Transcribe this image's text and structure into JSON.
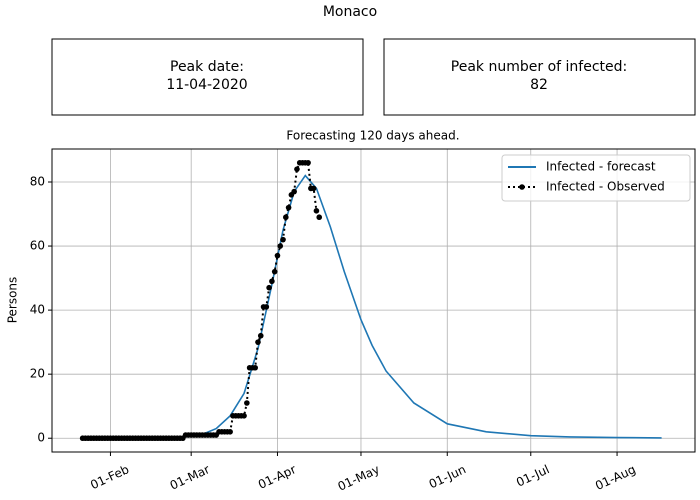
{
  "title": "Monaco",
  "boxes": [
    {
      "label": "Peak date:",
      "value": "11-04-2020"
    },
    {
      "label": "Peak number of infected:",
      "value": 82
    }
  ],
  "chart_data": {
    "type": "line",
    "title": "Forecasting 120 days ahead.",
    "y_label": "Persons",
    "xlim": [
      "2020-01-11",
      "2020-08-29"
    ],
    "xticks": [
      {
        "value": "2020-02-01",
        "label": "01-Feb"
      },
      {
        "value": "2020-03-01",
        "label": "01-Mar"
      },
      {
        "value": "2020-04-01",
        "label": "01-Apr"
      },
      {
        "value": "2020-05-01",
        "label": "01-May"
      },
      {
        "value": "2020-06-01",
        "label": "01-Jun"
      },
      {
        "value": "2020-07-01",
        "label": "01-Jul"
      },
      {
        "value": "2020-08-01",
        "label": "01-Aug"
      }
    ],
    "ylim": [
      -4.3,
      90.3
    ],
    "yticks": [
      0,
      20,
      40,
      60,
      80
    ],
    "grid": true,
    "legend": "upper right",
    "series": [
      {
        "name": "Infected - forecast",
        "color": "#1f77b4",
        "style": "solid",
        "x": [
          "2020-01-22",
          "2020-02-05",
          "2020-02-15",
          "2020-02-22",
          "2020-03-01",
          "2020-03-05",
          "2020-03-10",
          "2020-03-15",
          "2020-03-20",
          "2020-03-25",
          "2020-03-30",
          "2020-04-03",
          "2020-04-07",
          "2020-04-11",
          "2020-04-15",
          "2020-04-20",
          "2020-04-25",
          "2020-05-01",
          "2020-05-05",
          "2020-05-10",
          "2020-05-20",
          "2020-06-01",
          "2020-06-15",
          "2020-07-01",
          "2020-07-15",
          "2020-08-01",
          "2020-08-17"
        ],
        "values": [
          0,
          0,
          0.1,
          0.2,
          0.5,
          1.2,
          3,
          7,
          14,
          28,
          48,
          65,
          77,
          82,
          78,
          66,
          52,
          37,
          29,
          21,
          11,
          4.5,
          2,
          0.8,
          0.4,
          0.2,
          0.1
        ]
      },
      {
        "name": "Infected - Observed",
        "color": "#000000",
        "style": "dotted",
        "markers": true,
        "x": [
          "2020-01-22",
          "2020-01-23",
          "2020-01-24",
          "2020-01-25",
          "2020-01-26",
          "2020-01-27",
          "2020-01-28",
          "2020-01-29",
          "2020-01-30",
          "2020-01-31",
          "2020-02-01",
          "2020-02-02",
          "2020-02-03",
          "2020-02-04",
          "2020-02-05",
          "2020-02-06",
          "2020-02-07",
          "2020-02-08",
          "2020-02-09",
          "2020-02-10",
          "2020-02-11",
          "2020-02-12",
          "2020-02-13",
          "2020-02-14",
          "2020-02-15",
          "2020-02-16",
          "2020-02-17",
          "2020-02-18",
          "2020-02-19",
          "2020-02-20",
          "2020-02-21",
          "2020-02-22",
          "2020-02-23",
          "2020-02-24",
          "2020-02-25",
          "2020-02-26",
          "2020-02-27",
          "2020-02-28",
          "2020-02-29",
          "2020-03-01",
          "2020-03-02",
          "2020-03-03",
          "2020-03-04",
          "2020-03-05",
          "2020-03-06",
          "2020-03-07",
          "2020-03-08",
          "2020-03-09",
          "2020-03-10",
          "2020-03-11",
          "2020-03-12",
          "2020-03-13",
          "2020-03-14",
          "2020-03-15",
          "2020-03-16",
          "2020-03-17",
          "2020-03-18",
          "2020-03-19",
          "2020-03-20",
          "2020-03-21",
          "2020-03-22",
          "2020-03-23",
          "2020-03-24",
          "2020-03-25",
          "2020-03-26",
          "2020-03-27",
          "2020-03-28",
          "2020-03-29",
          "2020-03-30",
          "2020-03-31",
          "2020-04-01",
          "2020-04-02",
          "2020-04-03",
          "2020-04-04",
          "2020-04-05",
          "2020-04-06",
          "2020-04-07",
          "2020-04-08",
          "2020-04-09",
          "2020-04-10",
          "2020-04-11",
          "2020-04-12",
          "2020-04-13",
          "2020-04-14",
          "2020-04-15",
          "2020-04-16"
        ],
        "values": [
          0,
          0,
          0,
          0,
          0,
          0,
          0,
          0,
          0,
          0,
          0,
          0,
          0,
          0,
          0,
          0,
          0,
          0,
          0,
          0,
          0,
          0,
          0,
          0,
          0,
          0,
          0,
          0,
          0,
          0,
          0,
          0,
          0,
          0,
          0,
          0,
          0,
          1,
          1,
          1,
          1,
          1,
          1,
          1,
          1,
          1,
          1,
          1,
          1,
          2,
          2,
          2,
          2,
          2,
          7,
          7,
          7,
          7,
          7,
          11,
          22,
          22,
          22,
          30,
          32,
          41,
          41,
          47,
          49,
          52,
          57,
          60,
          62,
          69,
          72,
          76,
          77,
          84,
          86,
          86,
          86,
          86,
          78,
          78,
          71,
          69
        ]
      }
    ]
  }
}
